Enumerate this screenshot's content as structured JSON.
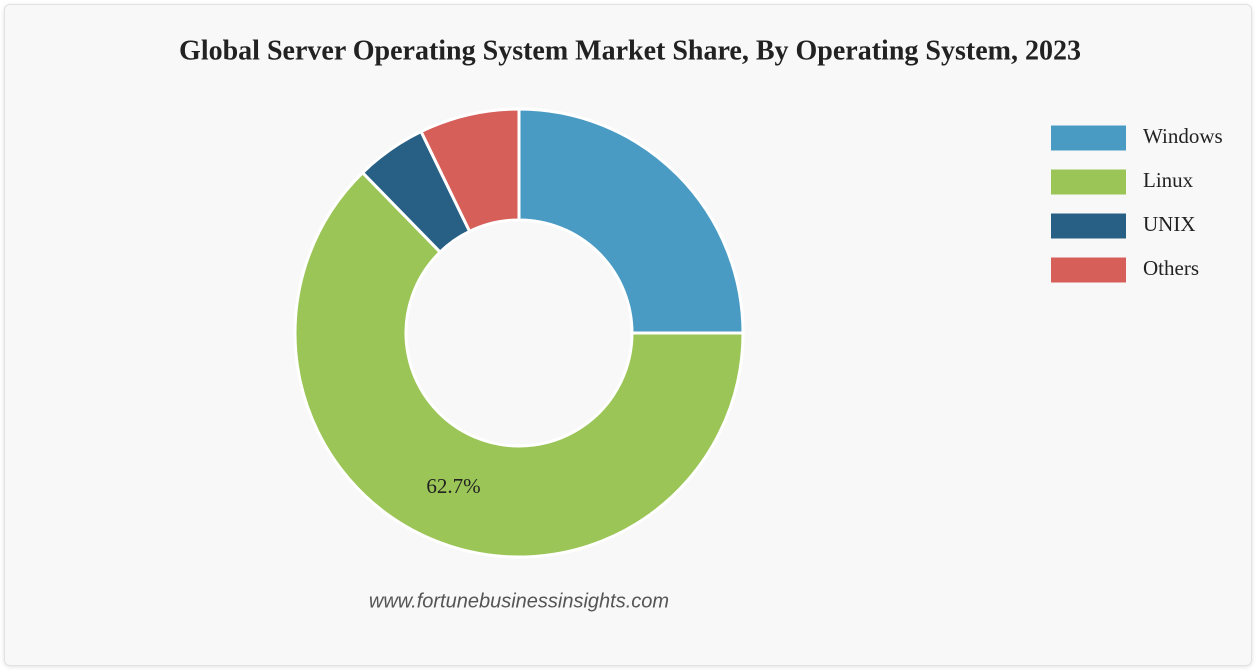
{
  "chart_data": {
    "type": "pie",
    "title": "Global Server Operating System Market Share, By Operating System, 2023",
    "categories": [
      "Windows",
      "Linux",
      "UNIX",
      "Others"
    ],
    "values": [
      25.0,
      62.7,
      5.1,
      7.2
    ],
    "value_labels": [
      null,
      "62.7%",
      null,
      null
    ],
    "colors": [
      "#4a9bc4",
      "#9bc556",
      "#286085",
      "#d65f5a"
    ],
    "legend": "top-right",
    "source": "www.fortunebusinessinsights.com"
  }
}
